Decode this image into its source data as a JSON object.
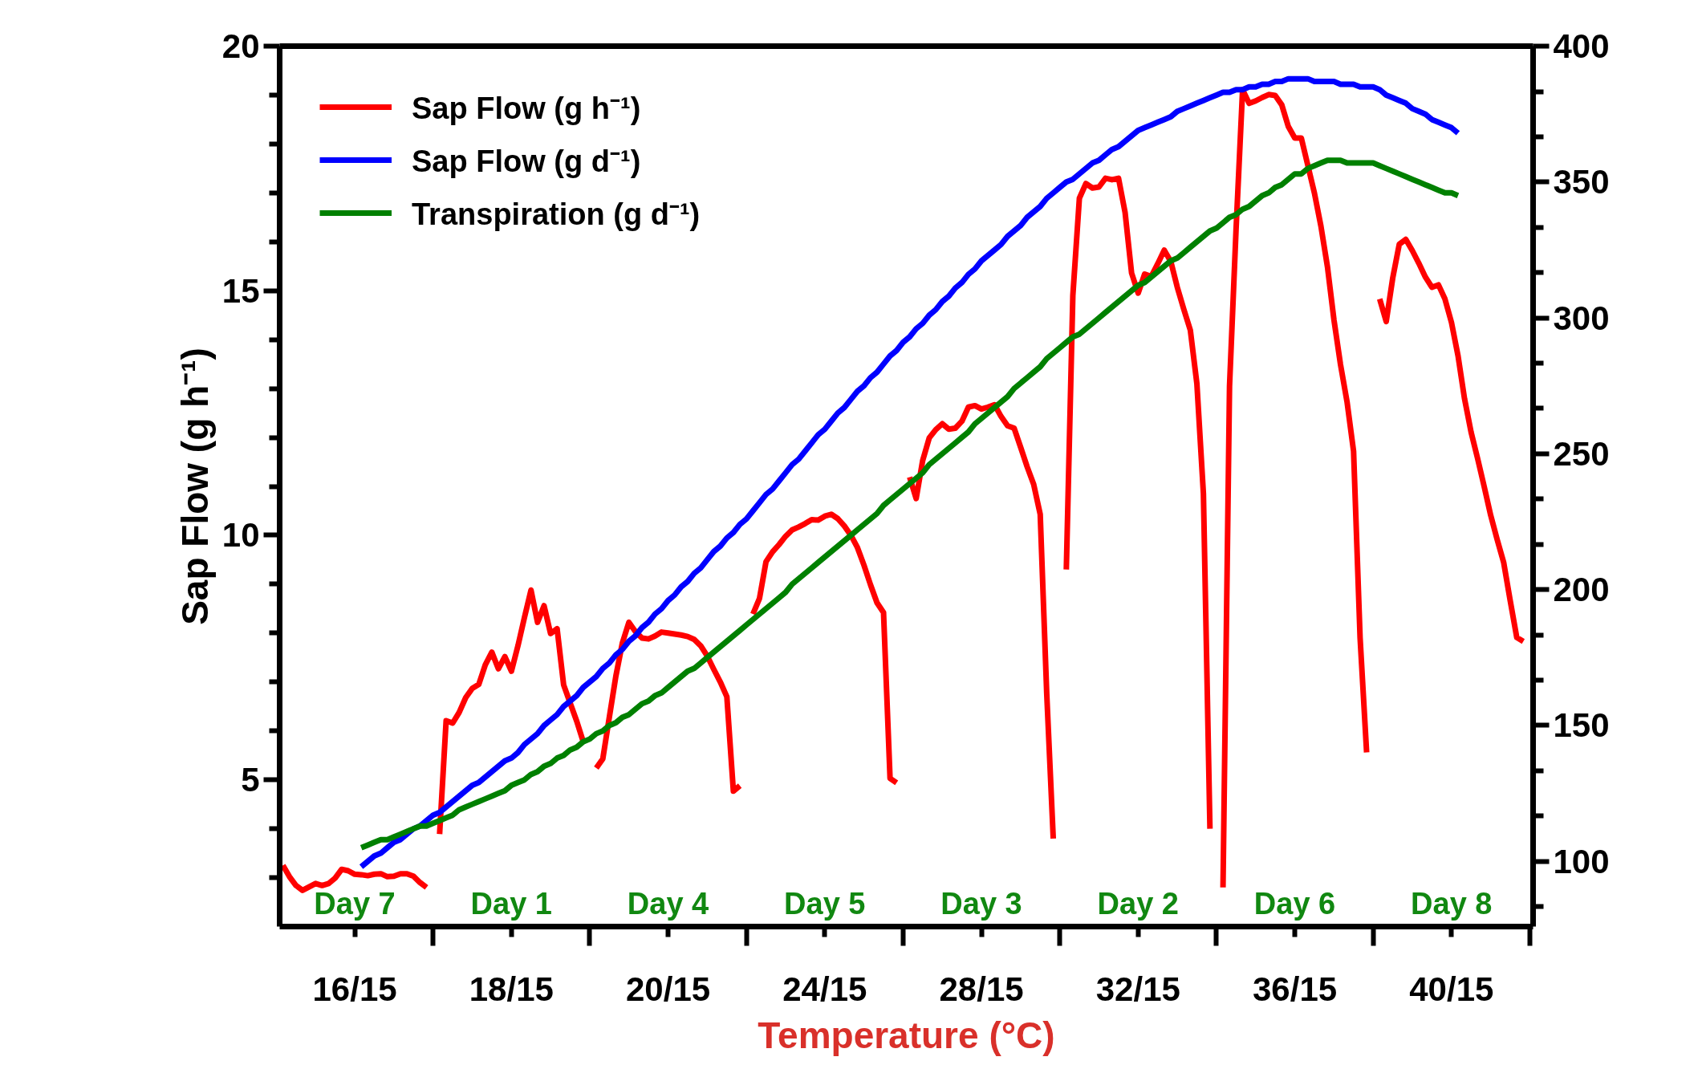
{
  "chart_data": {
    "type": "line",
    "xlabel": "Temperature (°C)",
    "ylabel": "Sap Flow (g h⁻¹)",
    "categories": [
      null,
      null,
      null,
      null,
      null,
      null,
      null,
      null,
      null,
      null,
      null,
      "16/15",
      null,
      null,
      null,
      null,
      null,
      null,
      null,
      null,
      null,
      null,
      null,
      null,
      null,
      null,
      null,
      null,
      null,
      null,
      null,
      null,
      null,
      null,
      null,
      "18/15",
      null,
      null,
      null,
      null,
      null,
      null,
      null,
      null,
      null,
      null,
      null,
      null,
      null,
      null,
      null,
      null,
      null,
      null,
      null,
      null,
      null,
      null,
      null,
      "20/15",
      null,
      null,
      null,
      null,
      null,
      null,
      null,
      null,
      null,
      null,
      null,
      null,
      null,
      null,
      null,
      null,
      null,
      null,
      null,
      null,
      null,
      null,
      null,
      "24/15",
      null,
      null,
      null,
      null,
      null,
      null,
      null,
      null,
      null,
      null,
      null,
      null,
      null,
      null,
      null,
      null,
      null,
      null,
      null,
      null,
      null,
      null,
      null,
      "28/15",
      null,
      null,
      null,
      null,
      null,
      null,
      null,
      null,
      null,
      null,
      null,
      null,
      null,
      null,
      null,
      null,
      null,
      null,
      null,
      null,
      null,
      null,
      null,
      "32/15",
      null,
      null,
      null,
      null,
      null,
      null,
      null,
      null,
      null,
      null,
      null,
      null,
      null,
      null,
      null,
      null,
      null,
      null,
      null,
      null,
      null,
      null,
      null,
      "36/15",
      null,
      null,
      null,
      null,
      null,
      null,
      null,
      null,
      null,
      null,
      null,
      null,
      null,
      null,
      null,
      null,
      null,
      null,
      null,
      null,
      null,
      null,
      null,
      "40/15",
      null,
      null,
      null,
      null,
      null,
      null,
      null,
      null,
      null,
      null,
      null,
      null
    ],
    "ylim": [
      2,
      20
    ],
    "y2lim": [
      76,
      400
    ],
    "yticks": [
      {
        "value": 3,
        "label": null
      },
      {
        "value": 4,
        "label": null
      },
      5,
      {
        "value": 6,
        "label": null
      },
      {
        "value": 7,
        "label": null
      },
      {
        "value": 8,
        "label": null
      },
      {
        "value": 9,
        "label": null
      },
      10,
      {
        "value": 11,
        "label": null
      },
      {
        "value": 12,
        "label": null
      },
      {
        "value": 13,
        "label": null
      },
      {
        "value": 14,
        "label": null
      },
      15,
      {
        "value": 16,
        "label": null
      },
      {
        "value": 17,
        "label": null
      },
      {
        "value": 18,
        "label": null
      },
      {
        "value": 19,
        "label": null
      },
      20
    ],
    "y2ticks": [
      {
        "value": 83.3,
        "label": null
      },
      100,
      {
        "value": 116.7,
        "label": null
      },
      {
        "value": 133.3,
        "label": null
      },
      150,
      {
        "value": 166.7,
        "label": null
      },
      {
        "value": 183.3,
        "label": null
      },
      200,
      {
        "value": 216.7,
        "label": null
      },
      {
        "value": 233.3,
        "label": null
      },
      250,
      {
        "value": 266.7,
        "label": null
      },
      {
        "value": 283.3,
        "label": null
      },
      300,
      {
        "value": 316.7,
        "label": null
      },
      {
        "value": 333.3,
        "label": null
      },
      350,
      {
        "value": 366.7,
        "label": null
      },
      {
        "value": 383.3,
        "label": null
      },
      400
    ],
    "grid": false,
    "legend": "top left",
    "marker": "none",
    "line_style": "solid",
    "series": [
      {
        "name": "Sap Flow (g h⁻¹)",
        "color": "#ff0000",
        "axis": "y",
        "values": [
          3.25,
          3.02,
          2.84,
          2.74,
          2.81,
          2.88,
          2.84,
          2.88,
          2.99,
          3.17,
          3.14,
          3.07,
          3.06,
          3.04,
          3.07,
          3.08,
          3.02,
          3.03,
          3.08,
          3.08,
          3.03,
          2.9,
          2.8,
          null,
          3.89,
          6.21,
          6.16,
          6.38,
          6.68,
          6.87,
          6.95,
          7.35,
          7.61,
          7.27,
          7.52,
          7.22,
          7.74,
          8.32,
          8.88,
          8.22,
          8.56,
          7.99,
          8.09,
          6.94,
          6.57,
          6.2,
          5.78,
          null,
          5.24,
          5.43,
          6.28,
          7.12,
          7.8,
          8.22,
          8.03,
          7.9,
          7.88,
          7.94,
          8.02,
          8.0,
          7.98,
          7.96,
          7.93,
          7.87,
          7.74,
          7.53,
          7.26,
          7.0,
          6.7,
          4.77,
          4.88,
          null,
          8.39,
          8.71,
          9.46,
          9.66,
          9.81,
          9.98,
          10.11,
          10.17,
          10.24,
          10.32,
          10.31,
          10.39,
          10.43,
          10.34,
          10.19,
          10.0,
          9.75,
          9.39,
          8.99,
          8.62,
          8.42,
          5.03,
          4.94,
          null,
          11.19,
          10.75,
          11.53,
          11.99,
          12.16,
          12.28,
          12.17,
          12.19,
          12.33,
          12.62,
          12.65,
          12.58,
          12.62,
          12.67,
          12.43,
          12.24,
          12.19,
          11.8,
          11.4,
          11.04,
          10.43,
          6.76,
          3.8,
          null,
          9.3,
          14.9,
          16.89,
          17.19,
          17.1,
          17.12,
          17.3,
          17.27,
          17.3,
          16.6,
          15.36,
          14.95,
          15.34,
          15.29,
          15.55,
          15.83,
          15.6,
          15.07,
          14.62,
          14.19,
          13.1,
          10.85,
          4.0,
          null,
          2.8,
          13.05,
          16.25,
          19.11,
          18.83,
          18.88,
          18.95,
          19.01,
          18.99,
          18.8,
          18.36,
          18.12,
          18.12,
          17.56,
          17.0,
          16.32,
          15.49,
          14.4,
          13.49,
          12.73,
          11.72,
          7.9,
          5.56,
          null,
          14.83,
          14.37,
          15.26,
          15.95,
          16.05,
          15.82,
          15.56,
          15.28,
          15.07,
          15.12,
          14.83,
          14.35,
          13.67,
          12.79,
          12.11,
          11.57,
          11.0,
          10.41,
          9.91,
          9.44,
          8.66,
          7.91,
          7.83,
          null
        ]
      },
      {
        "name": "Sap Flow (g d⁻¹)",
        "color": "#0000ff",
        "axis": "y2",
        "values": [
          null,
          null,
          null,
          null,
          null,
          null,
          null,
          null,
          null,
          null,
          null,
          null,
          98,
          100,
          102,
          103,
          105,
          107,
          108,
          110,
          112,
          113,
          115,
          117,
          118,
          120,
          122,
          124,
          126,
          128,
          129,
          131,
          133,
          135,
          137,
          138,
          140,
          143,
          145,
          147,
          150,
          152,
          154,
          157,
          159,
          161,
          164,
          166,
          168,
          171,
          173,
          176,
          178,
          181,
          183,
          186,
          188,
          191,
          193,
          196,
          198,
          201,
          203,
          206,
          208,
          211,
          214,
          216,
          219,
          221,
          224,
          226,
          229,
          232,
          235,
          237,
          240,
          243,
          246,
          248,
          251,
          254,
          257,
          259,
          262,
          265,
          267,
          270,
          273,
          275,
          278,
          280,
          283,
          286,
          288,
          291,
          293,
          296,
          298,
          301,
          303,
          306,
          308,
          311,
          313,
          316,
          318,
          321,
          323,
          325,
          327,
          330,
          332,
          334,
          337,
          339,
          341,
          344,
          346,
          348,
          350,
          351,
          353,
          355,
          357,
          358,
          360,
          362,
          363,
          365,
          367,
          369,
          370,
          371,
          372,
          373,
          374,
          376,
          377,
          378,
          379,
          380,
          381,
          382,
          383,
          383,
          384,
          384,
          385,
          385,
          386,
          386,
          387,
          387,
          388,
          388,
          388,
          388,
          387,
          387,
          387,
          387,
          386,
          386,
          386,
          385,
          385,
          385,
          384,
          382,
          381,
          380,
          379,
          377,
          376,
          375,
          373,
          372,
          371,
          370,
          368,
          null,
          null,
          null,
          null,
          null,
          null,
          null,
          null,
          null,
          null,
          null
        ]
      },
      {
        "name": "Transpiration (g d⁻¹)",
        "color": "#008000",
        "axis": "y2",
        "values": [
          null,
          null,
          null,
          null,
          null,
          null,
          null,
          null,
          null,
          null,
          null,
          null,
          105,
          106,
          107,
          108,
          108,
          109,
          110,
          111,
          112,
          113,
          113,
          114,
          115,
          116,
          117,
          119,
          120,
          121,
          122,
          123,
          124,
          125,
          126,
          128,
          129,
          130,
          132,
          133,
          135,
          136,
          138,
          139,
          141,
          142,
          144,
          145,
          147,
          148,
          150,
          151,
          153,
          154,
          156,
          158,
          159,
          161,
          162,
          164,
          166,
          168,
          170,
          171,
          173,
          175,
          177,
          179,
          181,
          183,
          185,
          187,
          189,
          191,
          193,
          195,
          197,
          199,
          202,
          204,
          206,
          208,
          210,
          212,
          214,
          216,
          218,
          220,
          222,
          224,
          226,
          228,
          231,
          233,
          235,
          237,
          239,
          241,
          243,
          246,
          248,
          250,
          252,
          254,
          256,
          258,
          261,
          263,
          265,
          267,
          269,
          271,
          274,
          276,
          278,
          280,
          282,
          285,
          287,
          289,
          291,
          293,
          294,
          296,
          298,
          300,
          302,
          304,
          306,
          308,
          310,
          312,
          313,
          315,
          317,
          319,
          321,
          322,
          324,
          326,
          328,
          330,
          332,
          333,
          335,
          337,
          338,
          340,
          341,
          343,
          345,
          346,
          348,
          349,
          351,
          353,
          353,
          355,
          356,
          357,
          358,
          358,
          358,
          357,
          357,
          357,
          357,
          357,
          356,
          355,
          354,
          353,
          352,
          351,
          350,
          349,
          348,
          347,
          346,
          346,
          345,
          null,
          null,
          null,
          null,
          null,
          null,
          null,
          null,
          null,
          null,
          null
        ]
      }
    ],
    "annotations": [
      "Day 7",
      "Day 1",
      "Day 4",
      "Day 5",
      "Day 3",
      "Day 2",
      "Day 6",
      "Day 8"
    ]
  }
}
